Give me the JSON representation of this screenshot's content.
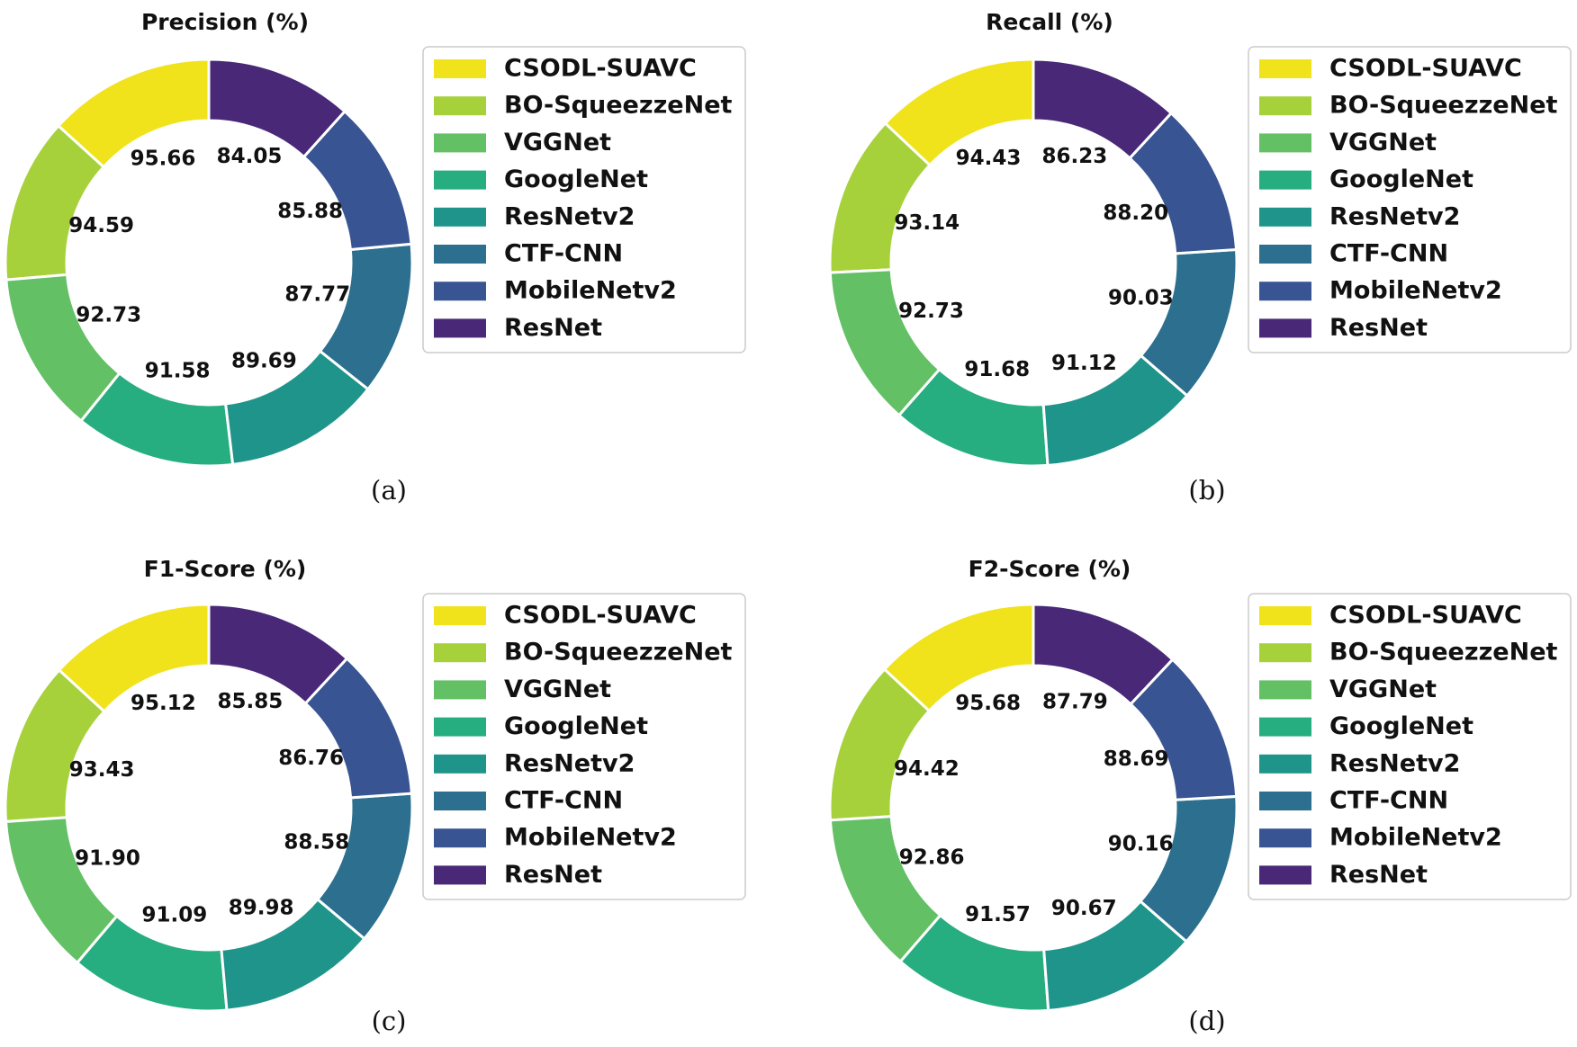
{
  "chart_data": [
    {
      "type": "pie",
      "style": "donut",
      "title": "Precision (%)",
      "caption": "(a)",
      "categories": [
        "CSODL-SUAVC",
        "BO-SqueezzeNet",
        "VGGNet",
        "GoogleNet",
        "ResNetv2",
        "CTF-CNN",
        "MobileNetv2",
        "ResNet"
      ],
      "values": [
        95.66,
        94.59,
        92.73,
        91.58,
        89.69,
        87.77,
        85.88,
        84.05
      ],
      "labels": [
        "95.66",
        "94.59",
        "92.73",
        "91.58",
        "89.69",
        "87.77",
        "85.88",
        "84.05"
      ],
      "legend": "right"
    },
    {
      "type": "pie",
      "style": "donut",
      "title": "Recall (%)",
      "caption": "(b)",
      "categories": [
        "CSODL-SUAVC",
        "BO-SqueezzeNet",
        "VGGNet",
        "GoogleNet",
        "ResNetv2",
        "CTF-CNN",
        "MobileNetv2",
        "ResNet"
      ],
      "values": [
        94.43,
        93.14,
        92.73,
        91.68,
        91.12,
        90.03,
        88.2,
        86.23
      ],
      "labels": [
        "94.43",
        "93.14",
        "92.73",
        "91.68",
        "91.12",
        "90.03",
        "88.20",
        "86.23"
      ],
      "legend": "right"
    },
    {
      "type": "pie",
      "style": "donut",
      "title": "F1-Score (%)",
      "caption": "(c)",
      "categories": [
        "CSODL-SUAVC",
        "BO-SqueezzeNet",
        "VGGNet",
        "GoogleNet",
        "ResNetv2",
        "CTF-CNN",
        "MobileNetv2",
        "ResNet"
      ],
      "values": [
        95.12,
        93.43,
        91.9,
        91.09,
        89.98,
        88.58,
        86.76,
        85.85
      ],
      "labels": [
        "95.12",
        "93.43",
        "91.90",
        "91.09",
        "89.98",
        "88.58",
        "86.76",
        "85.85"
      ],
      "legend": "right"
    },
    {
      "type": "pie",
      "style": "donut",
      "title": "F2-Score (%)",
      "caption": "(d)",
      "categories": [
        "CSODL-SUAVC",
        "BO-SqueezzeNet",
        "VGGNet",
        "GoogleNet",
        "ResNetv2",
        "CTF-CNN",
        "MobileNetv2",
        "ResNet"
      ],
      "values": [
        95.68,
        94.42,
        92.86,
        91.57,
        90.67,
        90.16,
        88.69,
        87.79
      ],
      "labels": [
        "95.68",
        "94.42",
        "92.86",
        "91.57",
        "90.67",
        "90.16",
        "88.69",
        "87.79"
      ],
      "legend": "right"
    }
  ],
  "colors": [
    "#f0e31c",
    "#a6d13b",
    "#63c065",
    "#26ad80",
    "#1f948b",
    "#2c6f8e",
    "#385492",
    "#482877"
  ]
}
